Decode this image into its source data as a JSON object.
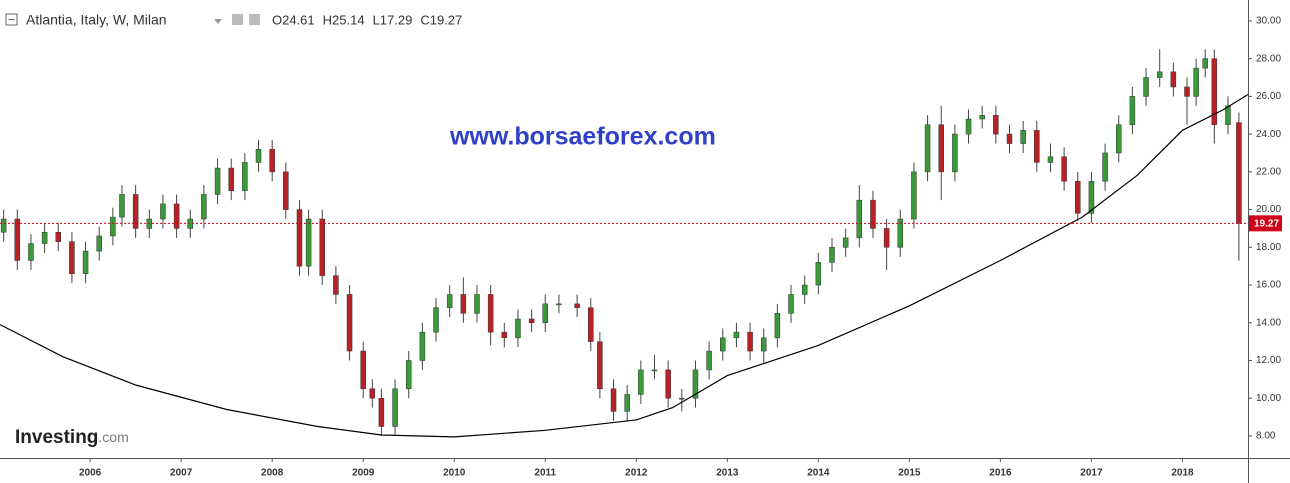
{
  "chart_data": {
    "type": "candlestick",
    "title": "Atlantia, Italy, W, Milan",
    "ohlc_header": [
      "O24.61",
      "H25.14",
      "L17.29",
      "C19.27"
    ],
    "watermark": "www.borsaeforex.com",
    "logo": "Investing",
    "logo_suffix": ".com",
    "up_color": "#3a9a3a",
    "down_color": "#b82226",
    "price_line_color": "#d0021b",
    "trend_color": "#000000",
    "xlim": [
      2005.01,
      2018.72
    ],
    "xticks": [
      2006,
      2007,
      2008,
      2009,
      2010,
      2011,
      2012,
      2013,
      2014,
      2015,
      2016,
      2017,
      2018
    ],
    "ylim": [
      6.83,
      31.11
    ],
    "yticks": [
      {
        "value": 8,
        "label": "8.00"
      },
      {
        "value": 10,
        "label": "10.00"
      },
      {
        "value": 12,
        "label": "12.00"
      },
      {
        "value": 14,
        "label": "14.00"
      },
      {
        "value": 16,
        "label": "16.00"
      },
      {
        "value": 18,
        "label": "18.00"
      },
      {
        "value": 20,
        "label": "20.00"
      },
      {
        "value": 22,
        "label": "22.00"
      },
      {
        "value": 24,
        "label": "24.00"
      },
      {
        "value": 26,
        "label": "26.00"
      },
      {
        "value": 28,
        "label": "28.00"
      },
      {
        "value": 30,
        "label": "30.00"
      }
    ],
    "x": [
      2005.05,
      2005.2,
      2005.35,
      2005.5,
      2005.65,
      2005.8,
      2005.95,
      2006.1,
      2006.25,
      2006.35,
      2006.5,
      2006.65,
      2006.8,
      2006.95,
      2007.1,
      2007.25,
      2007.4,
      2007.55,
      2007.7,
      2007.85,
      2008.0,
      2008.15,
      2008.3,
      2008.4,
      2008.55,
      2008.7,
      2008.85,
      2009.0,
      2009.1,
      2009.2,
      2009.35,
      2009.5,
      2009.65,
      2009.8,
      2009.95,
      2010.1,
      2010.25,
      2010.4,
      2010.55,
      2010.7,
      2010.85,
      2011.0,
      2011.15,
      2011.35,
      2011.5,
      2011.6,
      2011.75,
      2011.9,
      2012.05,
      2012.2,
      2012.35,
      2012.5,
      2012.65,
      2012.8,
      2012.95,
      2013.1,
      2013.25,
      2013.4,
      2013.55,
      2013.7,
      2013.85,
      2014.0,
      2014.15,
      2014.3,
      2014.45,
      2014.6,
      2014.75,
      2014.9,
      2015.05,
      2015.2,
      2015.35,
      2015.5,
      2015.65,
      2015.8,
      2015.95,
      2016.1,
      2016.25,
      2016.4,
      2016.55,
      2016.7,
      2016.85,
      2017.0,
      2017.15,
      2017.3,
      2017.45,
      2017.6,
      2017.75,
      2017.9,
      2018.05,
      2018.15,
      2018.25,
      2018.35,
      2018.5,
      2018.62
    ],
    "open": [
      18.8,
      19.5,
      17.3,
      18.2,
      18.8,
      18.3,
      16.6,
      17.8,
      18.6,
      19.6,
      20.8,
      19.0,
      19.5,
      20.3,
      19.0,
      19.5,
      20.8,
      22.2,
      21.0,
      22.5,
      23.2,
      22.0,
      20.0,
      17.0,
      19.5,
      16.5,
      15.5,
      12.5,
      10.5,
      10.0,
      8.5,
      10.5,
      12.0,
      13.5,
      14.8,
      15.5,
      14.5,
      15.5,
      13.5,
      13.2,
      14.2,
      14.0,
      15.0,
      15.0,
      14.8,
      13.0,
      10.5,
      9.3,
      10.2,
      11.5,
      11.5,
      10.0,
      10.0,
      11.5,
      12.5,
      13.2,
      13.5,
      12.5,
      13.2,
      14.5,
      15.5,
      16.0,
      17.2,
      18.0,
      18.5,
      20.5,
      19.0,
      18.0,
      19.5,
      22.0,
      24.5,
      22.0,
      24.0,
      24.8,
      25.0,
      24.0,
      23.5,
      24.2,
      22.5,
      22.8,
      21.5,
      19.8,
      21.5,
      23.0,
      24.5,
      26.0,
      27.0,
      27.3,
      26.5,
      26.0,
      27.5,
      28.0,
      24.5,
      24.61
    ],
    "high": [
      20.0,
      20.0,
      18.7,
      19.3,
      19.3,
      18.8,
      18.3,
      19.1,
      20.1,
      21.3,
      21.3,
      20.0,
      20.8,
      20.8,
      20.0,
      21.3,
      22.7,
      22.7,
      23.0,
      23.7,
      23.7,
      22.5,
      20.5,
      20.0,
      20.0,
      17.0,
      16.0,
      13.0,
      11.0,
      10.5,
      11.0,
      12.5,
      14.0,
      15.3,
      16.0,
      16.4,
      16.0,
      16.0,
      14.0,
      14.7,
      14.7,
      15.5,
      15.5,
      15.5,
      15.3,
      13.5,
      11.0,
      10.7,
      12.0,
      12.3,
      12.0,
      10.5,
      12.0,
      13.0,
      13.7,
      14.0,
      14.0,
      13.7,
      15.0,
      16.0,
      16.5,
      17.7,
      18.5,
      19.0,
      21.3,
      21.0,
      19.5,
      20.0,
      22.5,
      25.0,
      25.5,
      24.5,
      25.3,
      25.5,
      25.5,
      24.5,
      24.7,
      24.7,
      23.5,
      23.3,
      22.0,
      22.0,
      23.5,
      25.0,
      26.5,
      27.5,
      28.5,
      27.8,
      27.0,
      28.0,
      28.5,
      28.5,
      26.0,
      25.14
    ],
    "low": [
      18.3,
      16.8,
      16.8,
      17.7,
      17.8,
      16.1,
      16.1,
      17.3,
      18.1,
      19.1,
      18.5,
      18.5,
      19.0,
      18.5,
      18.5,
      19.0,
      20.3,
      20.5,
      20.5,
      22.0,
      21.5,
      19.5,
      16.5,
      16.5,
      16.0,
      15.0,
      12.0,
      10.0,
      9.5,
      8.0,
      8.0,
      10.0,
      11.5,
      13.0,
      14.3,
      14.0,
      14.0,
      12.8,
      12.7,
      12.7,
      13.5,
      13.5,
      14.5,
      14.3,
      12.5,
      10.0,
      8.8,
      8.8,
      9.7,
      11.0,
      9.5,
      9.3,
      9.5,
      11.0,
      12.0,
      12.7,
      12.0,
      11.8,
      12.7,
      14.0,
      15.0,
      15.5,
      16.7,
      17.5,
      18.0,
      18.5,
      16.8,
      17.5,
      19.0,
      21.5,
      20.5,
      21.5,
      23.5,
      24.3,
      23.5,
      23.0,
      23.0,
      22.0,
      22.0,
      21.0,
      19.4,
      19.3,
      21.0,
      22.5,
      24.0,
      25.5,
      26.5,
      26.0,
      24.5,
      25.5,
      27.0,
      23.5,
      24.0,
      17.29
    ],
    "close": [
      19.5,
      17.3,
      18.2,
      18.8,
      18.3,
      16.6,
      17.8,
      18.6,
      19.6,
      20.8,
      19.0,
      19.5,
      20.3,
      19.0,
      19.5,
      20.8,
      22.2,
      21.0,
      22.5,
      23.2,
      22.0,
      20.0,
      17.0,
      19.5,
      16.5,
      15.5,
      12.5,
      10.5,
      10.0,
      8.5,
      10.5,
      12.0,
      13.5,
      14.8,
      15.5,
      14.5,
      15.5,
      13.5,
      13.2,
      14.2,
      14.0,
      15.0,
      15.0,
      14.8,
      13.0,
      10.5,
      9.3,
      10.2,
      11.5,
      11.5,
      10.0,
      10.0,
      11.5,
      12.5,
      13.2,
      13.5,
      12.5,
      13.2,
      14.5,
      15.5,
      16.0,
      17.2,
      18.0,
      18.5,
      20.5,
      19.0,
      18.0,
      19.5,
      22.0,
      24.5,
      22.0,
      24.0,
      24.8,
      25.0,
      24.0,
      23.5,
      24.2,
      22.5,
      22.8,
      21.5,
      19.8,
      21.5,
      23.0,
      24.5,
      26.0,
      27.0,
      27.3,
      26.5,
      26.0,
      27.5,
      28.0,
      24.5,
      25.5,
      19.27
    ],
    "trend_line": {
      "x": [
        2005.01,
        2005.7,
        2006.5,
        2007.5,
        2008.5,
        2009.2,
        2010.0,
        2011.0,
        2012.0,
        2012.4,
        2013.0,
        2014.0,
        2015.0,
        2016.0,
        2016.9,
        2017.5,
        2018.0,
        2018.45,
        2018.72
      ],
      "y": [
        13.9,
        12.2,
        10.7,
        9.4,
        8.5,
        8.05,
        7.95,
        8.3,
        8.85,
        9.5,
        11.2,
        12.8,
        14.9,
        17.3,
        19.6,
        21.8,
        24.2,
        25.3,
        26.1
      ]
    }
  }
}
